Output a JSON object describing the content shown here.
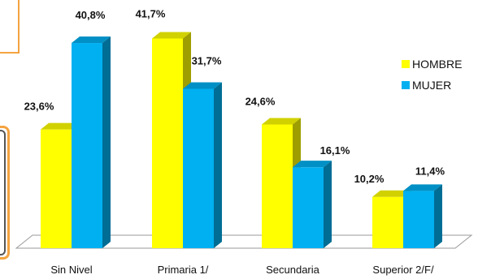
{
  "chart_data": {
    "type": "bar",
    "categories": [
      "Sin Nivel",
      "Primaria 1/",
      "Secundaria",
      "Superior 2/F/"
    ],
    "series": [
      {
        "name": "HOMBRE",
        "values": [
          23.6,
          41.7,
          24.6,
          10.2
        ],
        "labels": [
          "23,6%",
          "41,7%",
          "24,6%",
          "10,2%"
        ]
      },
      {
        "name": "MUJER",
        "values": [
          40.8,
          31.7,
          16.1,
          11.4
        ],
        "labels": [
          "40,8%",
          "31,7%",
          "16,1%",
          "11,4%"
        ]
      }
    ],
    "ylim": [
      0,
      45
    ],
    "legend_position": "right",
    "grid": false,
    "colors": {
      "HOMBRE": "#ffff00",
      "MUJER": "#00b0f0"
    }
  }
}
